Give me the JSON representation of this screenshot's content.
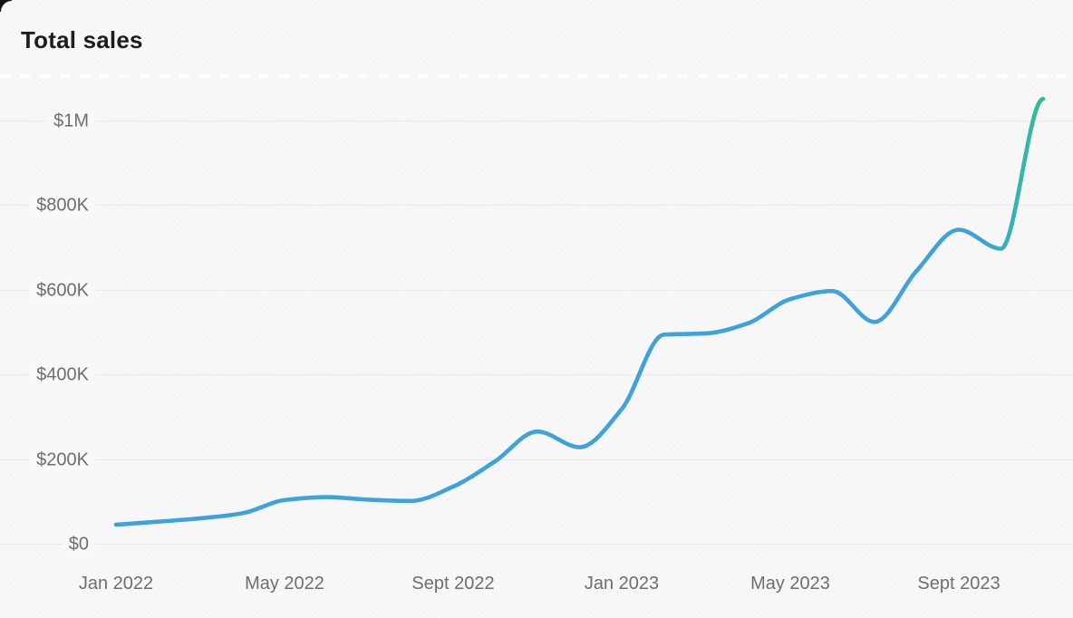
{
  "window": {
    "corner": "rounded-dark-top-left"
  },
  "chart": {
    "background": "#f8f8f8",
    "grid_color": "#e9e9e9",
    "tick_label_color": "#6e6e6e",
    "title_color": "#1b1d1f",
    "line_color_main": "#3fa2dc",
    "line_color_end": "#2ec08f"
  },
  "chart_data": {
    "type": "line",
    "title": "Total sales",
    "x": [
      "Jan 2022",
      "Feb 2022",
      "Mar 2022",
      "Apr 2022",
      "May 2022",
      "Jun 2022",
      "Jul 2022",
      "Aug 2022",
      "Sep 2022",
      "Oct 2022",
      "Nov 2022",
      "Dec 2022",
      "Jan 2023",
      "Feb 2023",
      "Mar 2023",
      "Apr 2023",
      "May 2023",
      "Jun 2023",
      "Jul 2023",
      "Aug 2023",
      "Sep 2023",
      "Oct 2023",
      "Nov 2023"
    ],
    "values": [
      45000,
      52000,
      60000,
      72000,
      103000,
      110000,
      104000,
      101000,
      135000,
      195000,
      265000,
      228000,
      318000,
      494000,
      497000,
      521000,
      578000,
      597000,
      524000,
      645000,
      742000,
      697000,
      1051000
    ],
    "x_tick_labels": [
      "Jan 2022",
      "May 2022",
      "Sept 2022",
      "Jan 2023",
      "May 2023",
      "Sept 2023"
    ],
    "x_tick_month_indices": [
      0,
      4,
      8,
      12,
      16,
      20
    ],
    "y_tick_labels": [
      "$0",
      "$200K",
      "$400K",
      "$600K",
      "$800K",
      "$1M"
    ],
    "y_tick_values": [
      0,
      200000,
      400000,
      600000,
      800000,
      1000000
    ],
    "ylim": [
      0,
      1100000
    ],
    "xlabel": "",
    "ylabel": "",
    "legend": "none",
    "grid": "horizontal-only",
    "line_style": "smooth curve, blue transitioning to green at the far right end"
  }
}
